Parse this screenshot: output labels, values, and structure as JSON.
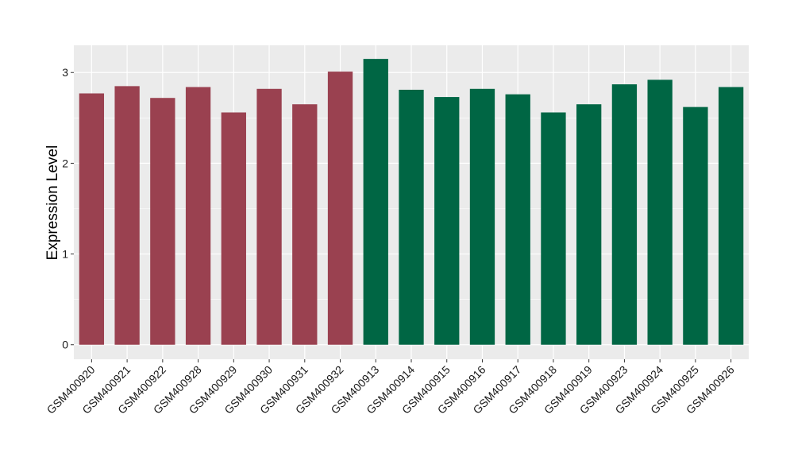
{
  "chart_data": {
    "type": "bar",
    "ylabel": "Expression Level",
    "xlabel": "",
    "ylim": [
      -0.16,
      3.3
    ],
    "yticks": [
      0,
      1,
      2,
      3
    ],
    "grid": true,
    "panel_background": "#ebebeb",
    "grid_color": "#ffffff",
    "categories": [
      "GSM400920",
      "GSM400921",
      "GSM400922",
      "GSM400928",
      "GSM400929",
      "GSM400930",
      "GSM400931",
      "GSM400932",
      "GSM400913",
      "GSM400914",
      "GSM400915",
      "GSM400916",
      "GSM400917",
      "GSM400918",
      "GSM400919",
      "GSM400923",
      "GSM400924",
      "GSM400925",
      "GSM400926"
    ],
    "values": [
      2.77,
      2.85,
      2.72,
      2.84,
      2.56,
      2.82,
      2.65,
      3.01,
      3.15,
      2.81,
      2.73,
      2.82,
      2.76,
      2.56,
      2.65,
      2.87,
      2.92,
      2.62,
      2.84
    ],
    "colors": [
      "#9a4150",
      "#9a4150",
      "#9a4150",
      "#9a4150",
      "#9a4150",
      "#9a4150",
      "#9a4150",
      "#9a4150",
      "#006644",
      "#006644",
      "#006644",
      "#006644",
      "#006644",
      "#006644",
      "#006644",
      "#006644",
      "#006644",
      "#006644",
      "#006644"
    ]
  }
}
